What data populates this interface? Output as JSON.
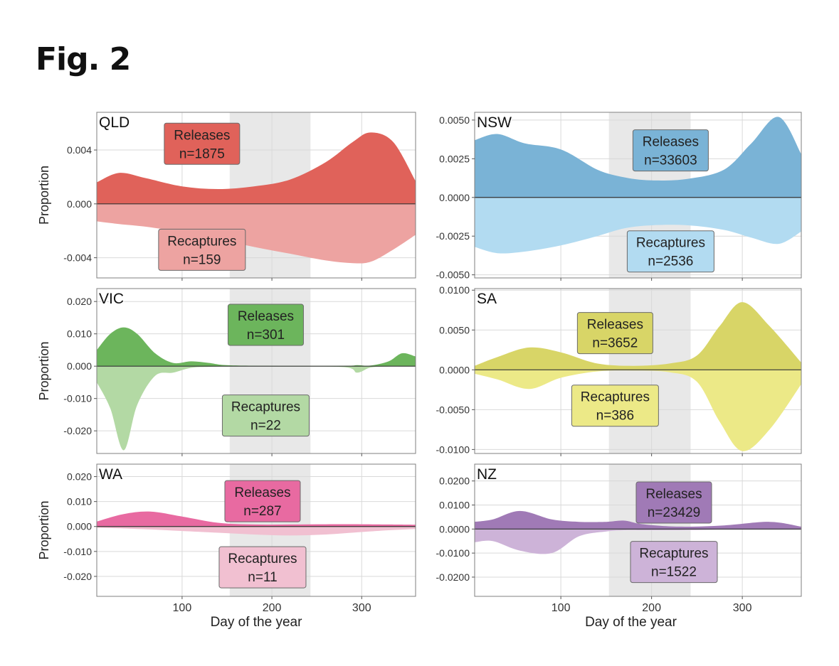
{
  "figure": {
    "title": "Fig. 2"
  },
  "labels": {
    "xlabel": "Day of the year",
    "ylabel": "Proportion"
  },
  "colors": {
    "QLD": {
      "release": "#e0625a",
      "recapture": "#eda3a1"
    },
    "NSW": {
      "release": "#7ab3d6",
      "recapture": "#b2dbf1"
    },
    "VIC": {
      "release": "#6cb55c",
      "recapture": "#b3d9a4"
    },
    "SA": {
      "release": "#d8d567",
      "recapture": "#ece987"
    },
    "WA": {
      "release": "#e86aa1",
      "recapture": "#f1c0d1"
    },
    "NZ": {
      "release": "#a07ab6",
      "recapture": "#cdb3d8"
    },
    "shade": "#e8e8e8",
    "grid": "#d9d9d9",
    "frame": "#7f7f7f"
  },
  "chart_data": [
    {
      "type": "area",
      "panel": "QLD",
      "xlim": [
        5,
        360
      ],
      "ylim": [
        -0.0055,
        0.0068
      ],
      "xticks": [
        100,
        200,
        300
      ],
      "yticks": [
        -0.004,
        0.0,
        0.004
      ],
      "ytick_labels": [
        "-0.004",
        "0.000",
        "0.004"
      ],
      "shaded_x": [
        153,
        243
      ],
      "grid": true,
      "x": [
        5,
        30,
        60,
        100,
        140,
        180,
        220,
        260,
        290,
        310,
        335,
        360
      ],
      "series": [
        {
          "name": "Releases",
          "n": "n=1875",
          "values": [
            0.0016,
            0.0023,
            0.0019,
            0.0013,
            0.0011,
            0.0013,
            0.0018,
            0.0031,
            0.0046,
            0.0053,
            0.0046,
            0.0017
          ]
        },
        {
          "name": "Recaptures",
          "n": "n=159",
          "values": [
            -0.0013,
            -0.0015,
            -0.0017,
            -0.0021,
            -0.0026,
            -0.0032,
            -0.0037,
            -0.0042,
            -0.0044,
            -0.0043,
            -0.0034,
            -0.0023
          ]
        }
      ]
    },
    {
      "type": "area",
      "panel": "NSW",
      "xlim": [
        5,
        365
      ],
      "ylim": [
        -0.0052,
        0.0055
      ],
      "xticks": [
        100,
        200,
        300
      ],
      "yticks": [
        -0.005,
        -0.0025,
        0.0,
        0.0025,
        0.005
      ],
      "ytick_labels": [
        "-0.0050",
        "-0.0025",
        "0.0000",
        "0.0025",
        "0.0050"
      ],
      "shaded_x": [
        153,
        243
      ],
      "grid": true,
      "x": [
        5,
        30,
        60,
        100,
        140,
        170,
        200,
        240,
        280,
        310,
        340,
        365
      ],
      "series": [
        {
          "name": "Releases",
          "n": "n=33603",
          "values": [
            0.0037,
            0.0041,
            0.0035,
            0.0031,
            0.0018,
            0.0013,
            0.0011,
            0.0012,
            0.0018,
            0.0035,
            0.0052,
            0.0028
          ]
        },
        {
          "name": "Recaptures",
          "n": "n=2536",
          "values": [
            -0.0032,
            -0.0036,
            -0.0035,
            -0.0031,
            -0.0025,
            -0.002,
            -0.0018,
            -0.0018,
            -0.0021,
            -0.0026,
            -0.003,
            -0.0022
          ]
        }
      ]
    },
    {
      "type": "area",
      "panel": "VIC",
      "xlim": [
        5,
        360
      ],
      "ylim": [
        -0.027,
        0.024
      ],
      "xticks": [
        100,
        200,
        300
      ],
      "yticks": [
        -0.02,
        -0.01,
        0.0,
        0.01,
        0.02
      ],
      "ytick_labels": [
        "-0.020",
        "-0.010",
        "0.000",
        "0.010",
        "0.020"
      ],
      "shaded_x": [
        153,
        243
      ],
      "grid": true,
      "x": [
        5,
        20,
        35,
        50,
        70,
        90,
        110,
        130,
        150,
        200,
        280,
        295,
        310,
        330,
        345,
        360
      ],
      "series": [
        {
          "name": "Releases",
          "n": "n=301",
          "values": [
            0.005,
            0.01,
            0.012,
            0.01,
            0.004,
            0.001,
            0.0015,
            0.001,
            0.0003,
            0.0001,
            0.0001,
            0.0003,
            0.0002,
            0.0015,
            0.004,
            0.003
          ]
        },
        {
          "name": "Recaptures",
          "n": "n=22",
          "values": [
            -0.005,
            -0.013,
            -0.026,
            -0.012,
            -0.003,
            -0.002,
            -0.0005,
            -0.0002,
            -0.0001,
            -0.0001,
            -0.0003,
            -0.002,
            -0.0004,
            -0.0001,
            -0.0001,
            -0.0001
          ]
        }
      ]
    },
    {
      "type": "area",
      "panel": "SA",
      "xlim": [
        5,
        365
      ],
      "ylim": [
        -0.0105,
        0.0102
      ],
      "xticks": [
        100,
        200,
        300
      ],
      "yticks": [
        -0.01,
        -0.005,
        0.0,
        0.005,
        0.01
      ],
      "ytick_labels": [
        "-0.0100",
        "-0.0050",
        "0.0000",
        "0.0050",
        "0.0100"
      ],
      "shaded_x": [
        153,
        243
      ],
      "grid": true,
      "x": [
        5,
        30,
        65,
        100,
        140,
        180,
        220,
        250,
        275,
        300,
        330,
        365
      ],
      "series": [
        {
          "name": "Releases",
          "n": "n=3652",
          "values": [
            0.0005,
            0.0016,
            0.0028,
            0.0022,
            0.0008,
            0.0005,
            0.0008,
            0.0018,
            0.0055,
            0.0085,
            0.0055,
            0.0009
          ]
        },
        {
          "name": "Recaptures",
          "n": "n=386",
          "values": [
            -0.0005,
            -0.0012,
            -0.0024,
            -0.001,
            -0.0002,
            -0.0001,
            -0.0003,
            -0.0015,
            -0.0065,
            -0.0102,
            -0.0075,
            -0.0018
          ]
        }
      ]
    },
    {
      "type": "area",
      "panel": "WA",
      "xlim": [
        5,
        360
      ],
      "ylim": [
        -0.028,
        0.025
      ],
      "xticks": [
        100,
        200,
        300
      ],
      "yticks": [
        -0.02,
        -0.01,
        0.0,
        0.01,
        0.02
      ],
      "ytick_labels": [
        "-0.020",
        "-0.010",
        "0.000",
        "0.010",
        "0.020"
      ],
      "shaded_x": [
        153,
        243
      ],
      "grid": true,
      "x": [
        5,
        35,
        65,
        100,
        140,
        180,
        220,
        260,
        300,
        330,
        360
      ],
      "series": [
        {
          "name": "Releases",
          "n": "n=287",
          "values": [
            0.002,
            0.005,
            0.006,
            0.004,
            0.0015,
            0.0008,
            0.0008,
            0.0009,
            0.0009,
            0.0008,
            0.0007
          ]
        },
        {
          "name": "Recaptures",
          "n": "n=11",
          "values": [
            -0.0005,
            -0.0008,
            -0.0012,
            -0.0018,
            -0.0025,
            -0.0032,
            -0.0036,
            -0.0032,
            -0.0022,
            -0.0015,
            -0.001
          ]
        }
      ]
    },
    {
      "type": "area",
      "panel": "NZ",
      "xlim": [
        5,
        365
      ],
      "ylim": [
        -0.028,
        0.027
      ],
      "xticks": [
        100,
        200,
        300
      ],
      "yticks": [
        -0.02,
        -0.01,
        0.0,
        0.01,
        0.02
      ],
      "ytick_labels": [
        "-0.0200",
        "-0.0100",
        "0.0000",
        "0.0100",
        "0.0200"
      ],
      "shaded_x": [
        153,
        243
      ],
      "grid": true,
      "x": [
        5,
        25,
        55,
        90,
        120,
        150,
        170,
        190,
        230,
        280,
        330,
        365
      ],
      "series": [
        {
          "name": "Releases",
          "n": "n=23429",
          "values": [
            0.003,
            0.004,
            0.0075,
            0.004,
            0.003,
            0.003,
            0.0035,
            0.002,
            0.001,
            0.0015,
            0.003,
            0.001
          ]
        },
        {
          "name": "Recaptures",
          "n": "n=1522",
          "values": [
            -0.0055,
            -0.005,
            -0.009,
            -0.01,
            -0.003,
            -0.001,
            -0.0005,
            -0.0005,
            -0.0005,
            -0.0003,
            -0.0003,
            -0.0003
          ]
        }
      ]
    }
  ]
}
